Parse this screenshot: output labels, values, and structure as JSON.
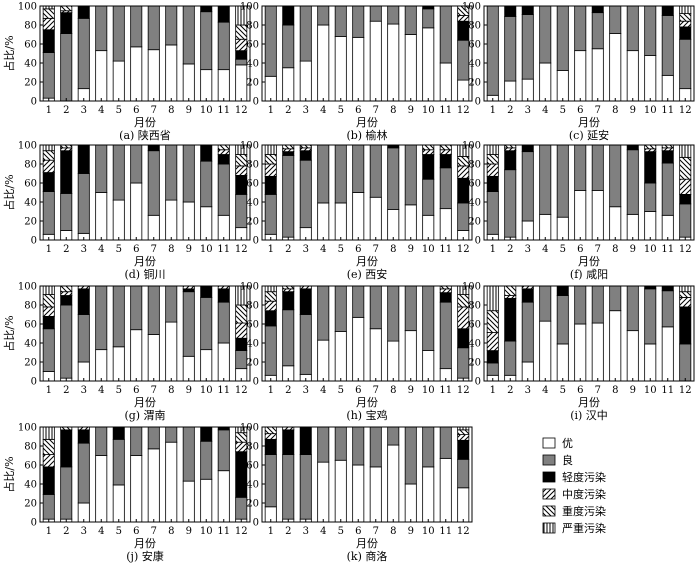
{
  "chart_data": {
    "type": "bar",
    "stacked": true,
    "percent": true,
    "categories": [
      "1",
      "2",
      "3",
      "4",
      "5",
      "6",
      "7",
      "8",
      "9",
      "10",
      "11",
      "12"
    ],
    "xlabel": "月份",
    "ylabel": "占比/%",
    "ylim": [
      0,
      100
    ],
    "yticks": [
      "0",
      "20",
      "40",
      "60",
      "80",
      "100"
    ],
    "legend_position": "bottom-right",
    "categories_order": [
      "优",
      "良",
      "轻度污染",
      "中度污染",
      "重度污染",
      "严重污染"
    ],
    "legend": [
      {
        "name": "优",
        "fill": "#ffffff"
      },
      {
        "name": "良",
        "fill": "#808080"
      },
      {
        "name": "轻度污染",
        "fill": "#000000"
      },
      {
        "name": "中度污染",
        "fill": "hatch-forward"
      },
      {
        "name": "重度污染",
        "fill": "hatch-back"
      },
      {
        "name": "严重污染",
        "fill": "hatch-vertical"
      }
    ],
    "panels": [
      {
        "label": "(a)  陕西省",
        "values": [
          [
            3,
            48,
            24,
            12,
            10,
            3
          ],
          [
            0,
            71,
            22,
            2,
            5,
            0
          ],
          [
            13,
            74,
            13,
            0,
            0,
            0
          ],
          [
            53,
            47,
            0,
            0,
            0,
            0
          ],
          [
            42,
            58,
            0,
            0,
            0,
            0
          ],
          [
            57,
            43,
            0,
            0,
            0,
            0
          ],
          [
            54,
            46,
            0,
            0,
            0,
            0
          ],
          [
            59,
            41,
            0,
            0,
            0,
            0
          ],
          [
            39,
            61,
            0,
            0,
            0,
            0
          ],
          [
            33,
            61,
            6,
            0,
            0,
            0
          ],
          [
            33,
            50,
            17,
            0,
            0,
            0
          ],
          [
            38,
            6,
            9,
            12,
            15,
            20
          ]
        ]
      },
      {
        "label": "(b)  榆林",
        "values": [
          [
            26,
            74,
            0,
            0,
            0,
            0
          ],
          [
            35,
            45,
            20,
            0,
            0,
            0
          ],
          [
            42,
            58,
            0,
            0,
            0,
            0
          ],
          [
            80,
            20,
            0,
            0,
            0,
            0
          ],
          [
            68,
            32,
            0,
            0,
            0,
            0
          ],
          [
            67,
            33,
            0,
            0,
            0,
            0
          ],
          [
            84,
            16,
            0,
            0,
            0,
            0
          ],
          [
            81,
            19,
            0,
            0,
            0,
            0
          ],
          [
            70,
            30,
            0,
            0,
            0,
            0
          ],
          [
            77,
            20,
            3,
            0,
            0,
            0
          ],
          [
            40,
            60,
            0,
            0,
            0,
            0
          ],
          [
            22,
            42,
            20,
            6,
            10,
            0
          ]
        ]
      },
      {
        "label": "(c)  延安",
        "values": [
          [
            6,
            94,
            0,
            0,
            0,
            0
          ],
          [
            21,
            68,
            11,
            0,
            0,
            0
          ],
          [
            23,
            68,
            9,
            0,
            0,
            0
          ],
          [
            40,
            60,
            0,
            0,
            0,
            0
          ],
          [
            32,
            68,
            0,
            0,
            0,
            0
          ],
          [
            53,
            47,
            0,
            0,
            0,
            0
          ],
          [
            55,
            38,
            7,
            0,
            0,
            0
          ],
          [
            71,
            29,
            0,
            0,
            0,
            0
          ],
          [
            53,
            47,
            0,
            0,
            0,
            0
          ],
          [
            48,
            52,
            0,
            0,
            0,
            0
          ],
          [
            27,
            63,
            10,
            0,
            0,
            0
          ],
          [
            13,
            52,
            13,
            6,
            8,
            8
          ]
        ]
      },
      {
        "label": "(d)  铜川",
        "values": [
          [
            6,
            45,
            20,
            13,
            10,
            6
          ],
          [
            10,
            39,
            45,
            3,
            3,
            0
          ],
          [
            7,
            63,
            30,
            0,
            0,
            0
          ],
          [
            50,
            50,
            0,
            0,
            0,
            0
          ],
          [
            42,
            58,
            0,
            0,
            0,
            0
          ],
          [
            60,
            40,
            0,
            0,
            0,
            0
          ],
          [
            26,
            68,
            6,
            0,
            0,
            0
          ],
          [
            42,
            58,
            0,
            0,
            0,
            0
          ],
          [
            40,
            60,
            0,
            0,
            0,
            0
          ],
          [
            35,
            48,
            17,
            0,
            0,
            0
          ],
          [
            26,
            54,
            10,
            5,
            5,
            0
          ],
          [
            13,
            35,
            20,
            10,
            12,
            10
          ]
        ]
      },
      {
        "label": "(e)  西安",
        "values": [
          [
            6,
            42,
            19,
            13,
            10,
            10
          ],
          [
            3,
            86,
            4,
            3,
            4,
            0
          ],
          [
            13,
            71,
            10,
            3,
            3,
            0
          ],
          [
            39,
            61,
            0,
            0,
            0,
            0
          ],
          [
            39,
            61,
            0,
            0,
            0,
            0
          ],
          [
            50,
            50,
            0,
            0,
            0,
            0
          ],
          [
            45,
            55,
            0,
            0,
            0,
            0
          ],
          [
            32,
            65,
            3,
            0,
            0,
            0
          ],
          [
            37,
            63,
            0,
            0,
            0,
            0
          ],
          [
            26,
            38,
            26,
            5,
            5,
            0
          ],
          [
            33,
            43,
            14,
            5,
            5,
            0
          ],
          [
            10,
            29,
            26,
            13,
            10,
            12
          ]
        ]
      },
      {
        "label": "(f)  咸阳",
        "values": [
          [
            6,
            45,
            16,
            13,
            10,
            10
          ],
          [
            3,
            71,
            20,
            3,
            3,
            0
          ],
          [
            20,
            73,
            7,
            0,
            0,
            0
          ],
          [
            27,
            73,
            0,
            0,
            0,
            0
          ],
          [
            24,
            76,
            0,
            0,
            0,
            0
          ],
          [
            52,
            48,
            0,
            0,
            0,
            0
          ],
          [
            52,
            48,
            0,
            0,
            0,
            0
          ],
          [
            35,
            65,
            0,
            0,
            0,
            0
          ],
          [
            27,
            68,
            5,
            0,
            0,
            0
          ],
          [
            30,
            30,
            33,
            3,
            4,
            0
          ],
          [
            26,
            55,
            13,
            3,
            3,
            0
          ],
          [
            3,
            35,
            10,
            16,
            23,
            13
          ]
        ]
      },
      {
        "label": "(g)  渭南",
        "values": [
          [
            10,
            45,
            13,
            10,
            13,
            9
          ],
          [
            3,
            77,
            10,
            4,
            6,
            0
          ],
          [
            20,
            50,
            27,
            3,
            0,
            0
          ],
          [
            33,
            67,
            0,
            0,
            0,
            0
          ],
          [
            36,
            64,
            0,
            0,
            0,
            0
          ],
          [
            54,
            46,
            0,
            0,
            0,
            0
          ],
          [
            49,
            51,
            0,
            0,
            0,
            0
          ],
          [
            62,
            38,
            0,
            0,
            0,
            0
          ],
          [
            26,
            68,
            3,
            3,
            0,
            0
          ],
          [
            33,
            55,
            12,
            0,
            0,
            0
          ],
          [
            40,
            43,
            14,
            3,
            0,
            0
          ],
          [
            13,
            19,
            13,
            16,
            19,
            20
          ]
        ]
      },
      {
        "label": "(h)  宝鸡",
        "values": [
          [
            6,
            52,
            16,
            10,
            10,
            6
          ],
          [
            16,
            59,
            19,
            3,
            3,
            0
          ],
          [
            7,
            63,
            27,
            3,
            0,
            0
          ],
          [
            43,
            57,
            0,
            0,
            0,
            0
          ],
          [
            52,
            48,
            0,
            0,
            0,
            0
          ],
          [
            67,
            33,
            0,
            0,
            0,
            0
          ],
          [
            55,
            45,
            0,
            0,
            0,
            0
          ],
          [
            42,
            58,
            0,
            0,
            0,
            0
          ],
          [
            53,
            47,
            0,
            0,
            0,
            0
          ],
          [
            32,
            68,
            0,
            0,
            0,
            0
          ],
          [
            13,
            70,
            10,
            4,
            3,
            0
          ],
          [
            3,
            32,
            20,
            23,
            13,
            9
          ]
        ]
      },
      {
        "label": "(i)  汉中",
        "values": [
          [
            6,
            13,
            13,
            19,
            23,
            26
          ],
          [
            6,
            36,
            45,
            3,
            10,
            0
          ],
          [
            20,
            63,
            14,
            3,
            0,
            0
          ],
          [
            63,
            37,
            0,
            0,
            0,
            0
          ],
          [
            39,
            51,
            10,
            0,
            0,
            0
          ],
          [
            60,
            40,
            0,
            0,
            0,
            0
          ],
          [
            61,
            39,
            0,
            0,
            0,
            0
          ],
          [
            74,
            26,
            0,
            0,
            0,
            0
          ],
          [
            53,
            47,
            0,
            0,
            0,
            0
          ],
          [
            39,
            58,
            3,
            0,
            0,
            0
          ],
          [
            57,
            38,
            5,
            0,
            0,
            0
          ],
          [
            0,
            39,
            39,
            10,
            6,
            6
          ]
        ]
      },
      {
        "label": "(j)  安康",
        "values": [
          [
            3,
            26,
            29,
            13,
            16,
            13
          ],
          [
            3,
            55,
            39,
            0,
            3,
            0
          ],
          [
            20,
            63,
            14,
            3,
            0,
            0
          ],
          [
            70,
            30,
            0,
            0,
            0,
            0
          ],
          [
            39,
            48,
            13,
            0,
            0,
            0
          ],
          [
            70,
            30,
            0,
            0,
            0,
            0
          ],
          [
            77,
            23,
            0,
            0,
            0,
            0
          ],
          [
            84,
            16,
            0,
            0,
            0,
            0
          ],
          [
            43,
            57,
            0,
            0,
            0,
            0
          ],
          [
            45,
            40,
            15,
            0,
            0,
            0
          ],
          [
            54,
            43,
            3,
            0,
            0,
            0
          ],
          [
            3,
            23,
            48,
            10,
            10,
            6
          ]
        ]
      },
      {
        "label": "(k)  商洛",
        "values": [
          [
            16,
            55,
            16,
            6,
            7,
            0
          ],
          [
            3,
            68,
            26,
            3,
            0,
            0
          ],
          [
            3,
            68,
            29,
            0,
            0,
            0
          ],
          [
            63,
            37,
            0,
            0,
            0,
            0
          ],
          [
            65,
            35,
            0,
            0,
            0,
            0
          ],
          [
            60,
            40,
            0,
            0,
            0,
            0
          ],
          [
            58,
            42,
            0,
            0,
            0,
            0
          ],
          [
            81,
            19,
            0,
            0,
            0,
            0
          ],
          [
            40,
            60,
            0,
            0,
            0,
            0
          ],
          [
            58,
            42,
            0,
            0,
            0,
            0
          ],
          [
            67,
            33,
            0,
            0,
            0,
            0
          ],
          [
            36,
            30,
            20,
            6,
            5,
            3
          ]
        ]
      }
    ]
  }
}
